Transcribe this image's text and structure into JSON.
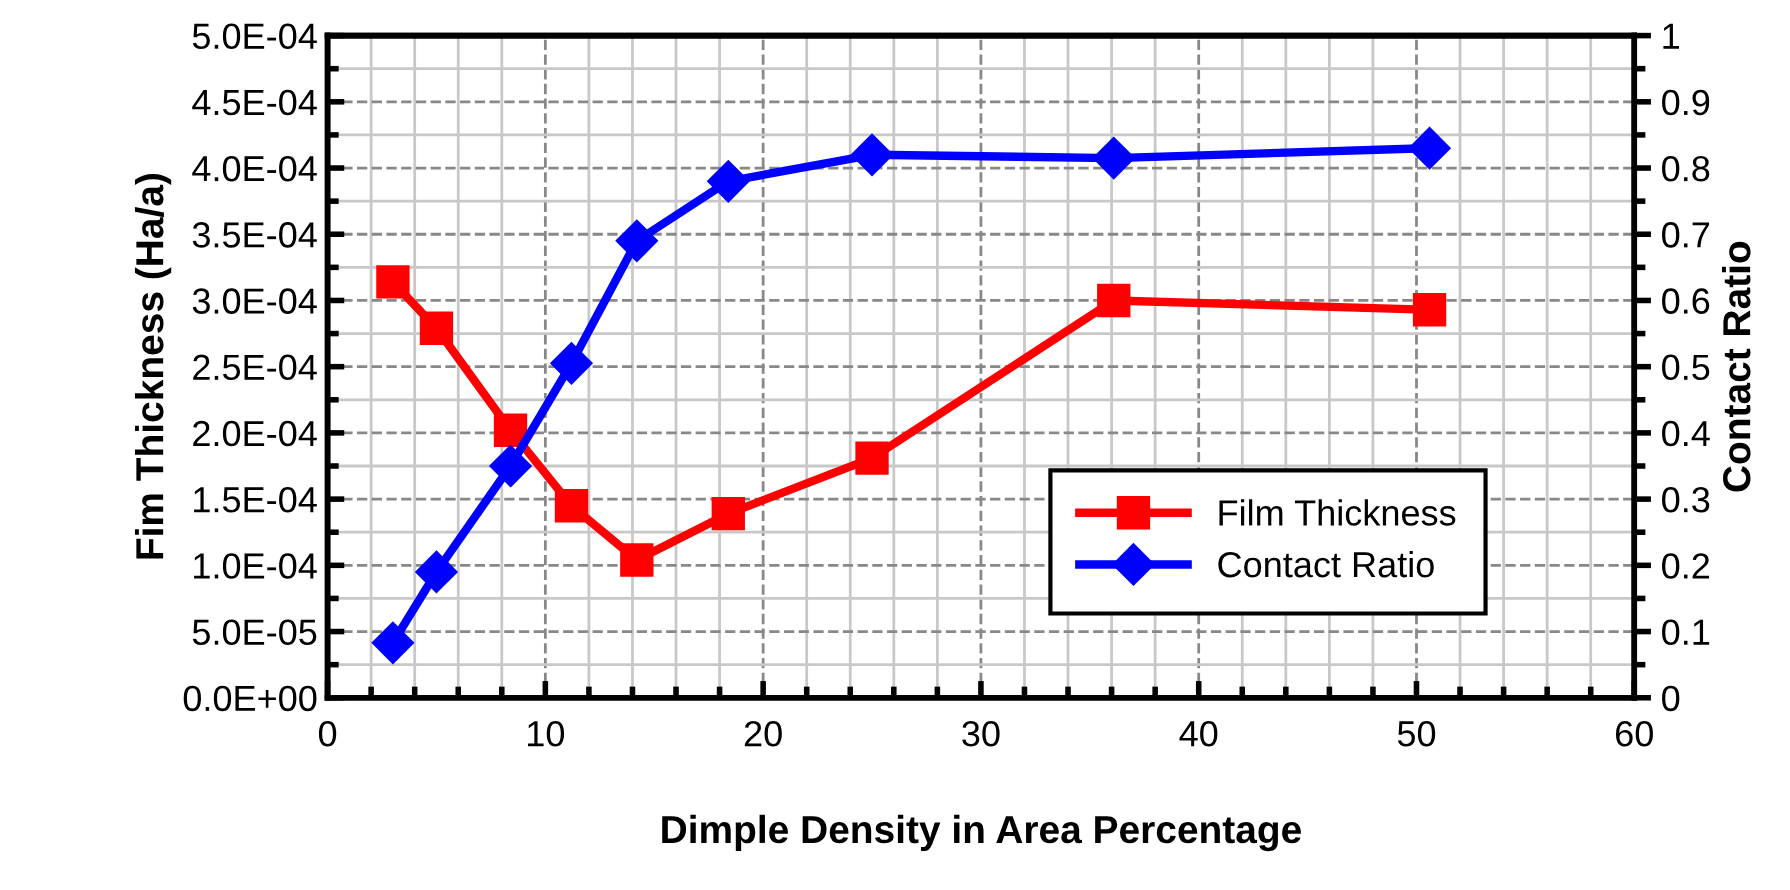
{
  "chart_data": {
    "type": "line",
    "xlabel": "Dimple Density in Area Percentage",
    "ylabel": "Fim Thickness (Ha/a)",
    "y2label": "Contact Ratio",
    "series": [
      {
        "name": "Film Thickness",
        "color": "#ff0000",
        "marker": "square",
        "x": [
          3,
          5,
          8.4,
          11.2,
          14.2,
          18.4,
          25,
          36.1,
          50.6
        ],
        "values": [
          0.000314,
          0.000279,
          0.000202,
          0.000145,
          0.000104,
          0.000139,
          0.000181,
          0.0003,
          0.000293
        ]
      },
      {
        "name": "Contact Ratio",
        "color": "#0000ff",
        "marker": "diamond",
        "axis": "y2",
        "x": [
          3,
          5,
          8.4,
          11.2,
          14.2,
          18.4,
          25,
          36.1,
          50.6
        ],
        "values": [
          0.083,
          0.19,
          0.35,
          0.505,
          0.69,
          0.78,
          0.82,
          0.815,
          0.83
        ]
      }
    ],
    "xlim": [
      0,
      60
    ],
    "xticks": [
      0,
      10,
      20,
      30,
      40,
      50,
      60
    ],
    "ylim": [
      0,
      0.0005
    ],
    "yticks": [
      {
        "value": 0,
        "label": "0.0E+00"
      },
      {
        "value": 5e-05,
        "label": "5.0E-05"
      },
      {
        "value": 0.0001,
        "label": "1.0E-04"
      },
      {
        "value": 0.00015,
        "label": "1.5E-04"
      },
      {
        "value": 0.0002,
        "label": "2.0E-04"
      },
      {
        "value": 0.00025,
        "label": "2.5E-04"
      },
      {
        "value": 0.0003,
        "label": "3.0E-04"
      },
      {
        "value": 0.00035,
        "label": "3.5E-04"
      },
      {
        "value": 0.0004,
        "label": "4.0E-04"
      },
      {
        "value": 0.00045,
        "label": "4.5E-04"
      },
      {
        "value": 0.0005,
        "label": "5.0E-04"
      }
    ],
    "y2lim": [
      0,
      1
    ],
    "y2ticks": [
      0,
      0.1,
      0.2,
      0.3,
      0.4,
      0.5,
      0.6,
      0.7,
      0.8,
      0.9,
      1
    ],
    "grid": true,
    "legend": "bottom right",
    "line_style": "solid"
  }
}
